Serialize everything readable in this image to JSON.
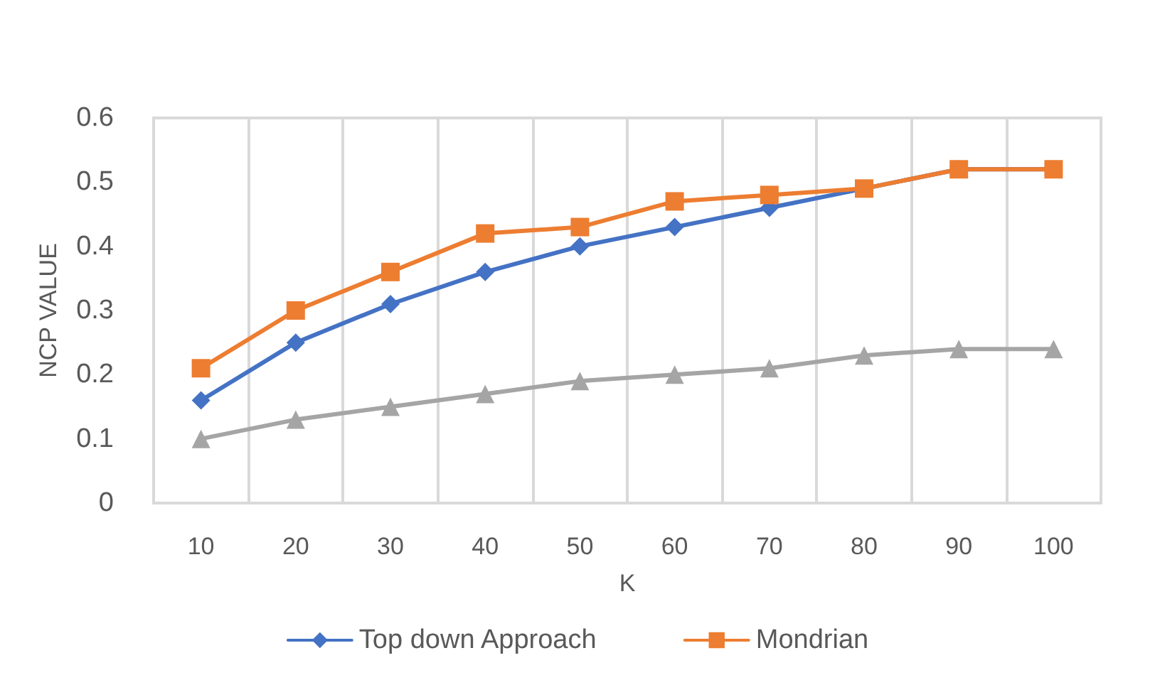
{
  "chart_data": {
    "type": "line",
    "xlabel": "K",
    "ylabel": "NCP VALUE",
    "categories": [
      "10",
      "20",
      "30",
      "40",
      "50",
      "60",
      "70",
      "80",
      "90",
      "100"
    ],
    "series": [
      {
        "name": "Top down Approach",
        "color": "#4472c4",
        "marker": "diamond",
        "values": [
          0.16,
          0.25,
          0.31,
          0.36,
          0.4,
          0.43,
          0.46,
          0.49,
          0.52,
          0.52
        ]
      },
      {
        "name": "Mondrian",
        "color": "#ed7d31",
        "marker": "square",
        "values": [
          0.21,
          0.3,
          0.36,
          0.42,
          0.43,
          0.47,
          0.48,
          0.49,
          0.52,
          0.52
        ]
      },
      {
        "color": "#a5a5a5",
        "marker": "triangle",
        "values": [
          0.1,
          0.13,
          0.15,
          0.17,
          0.19,
          0.2,
          0.21,
          0.23,
          0.24,
          0.24
        ]
      }
    ],
    "ylim": [
      0,
      0.6
    ],
    "yticks": [
      0,
      0.1,
      0.2,
      0.3,
      0.4,
      0.5,
      0.6
    ],
    "grid": "x",
    "legend": "bottom"
  }
}
